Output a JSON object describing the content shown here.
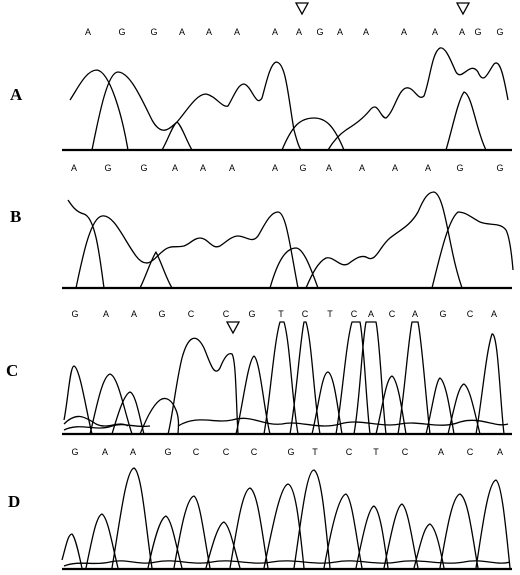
{
  "panels": [
    {
      "label": "A",
      "bases": [
        "A",
        "G",
        "G",
        "A",
        "A",
        "A",
        "A",
        "A",
        "G",
        "A",
        "A",
        "A",
        "A",
        "A",
        "G",
        "G"
      ]
    },
    {
      "label": "B",
      "bases": [
        "A",
        "G",
        "G",
        "A",
        "A",
        "A",
        "A",
        "G",
        "A",
        "A",
        "A",
        "A",
        "G",
        "G"
      ]
    },
    {
      "label": "C",
      "bases": [
        "G",
        "A",
        "A",
        "G",
        "C",
        "C",
        "G",
        "T",
        "C",
        "T",
        "C",
        "A",
        "C",
        "A",
        "G",
        "C",
        "A"
      ]
    },
    {
      "label": "D",
      "bases": [
        "G",
        "A",
        "A",
        "G",
        "C",
        "C",
        "C",
        "G",
        "T",
        "C",
        "T",
        "C",
        "A",
        "C",
        "A"
      ]
    }
  ]
}
